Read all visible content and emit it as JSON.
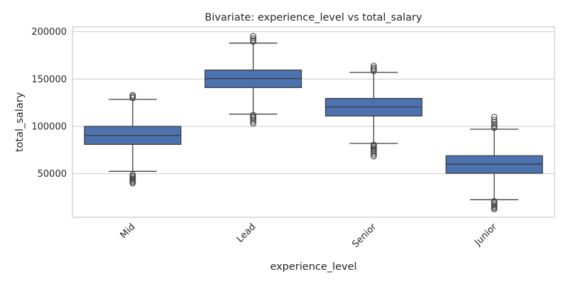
{
  "chart_data": {
    "type": "box",
    "title": "Bivariate: experience_level vs total_salary",
    "xlabel": "experience_level",
    "ylabel": "total_salary",
    "ylim": [
      4000,
      205000
    ],
    "yticks": [
      50000,
      100000,
      150000,
      200000
    ],
    "grid": true,
    "colors": {
      "box": "#4c72b0",
      "line": "#3f3f3f",
      "grid": "#cccccc",
      "frame": "#cccccc"
    },
    "categories": [
      "Mid",
      "Lead",
      "Senior",
      "Junior"
    ],
    "boxes": [
      {
        "category": "Mid",
        "whisker_low": 52500,
        "q1": 81000,
        "median": 90500,
        "q3": 100000,
        "whisker_high": 128500,
        "outliers": [
          40000,
          41500,
          43000,
          44500,
          46000,
          47500,
          49000,
          130000,
          131500,
          133000
        ]
      },
      {
        "category": "Lead",
        "whisker_low": 113000,
        "q1": 141000,
        "median": 150500,
        "q3": 159500,
        "whisker_high": 188000,
        "outliers": [
          103000,
          105000,
          107000,
          109000,
          110500,
          112000,
          189500,
          191000,
          193000,
          195500
        ]
      },
      {
        "category": "Senior",
        "whisker_low": 82000,
        "q1": 111000,
        "median": 120500,
        "q3": 129500,
        "whisker_high": 157000,
        "outliers": [
          68500,
          70500,
          72500,
          74500,
          76000,
          77500,
          79000,
          80500,
          158500,
          160500,
          162000,
          164000
        ]
      },
      {
        "category": "Junior",
        "whisker_low": 22500,
        "q1": 50500,
        "median": 60000,
        "q3": 69000,
        "whisker_high": 97000,
        "outliers": [
          12500,
          14000,
          15500,
          17000,
          18500,
          20000,
          21000,
          98500,
          100500,
          102500,
          104500,
          107000,
          110000
        ]
      }
    ]
  }
}
